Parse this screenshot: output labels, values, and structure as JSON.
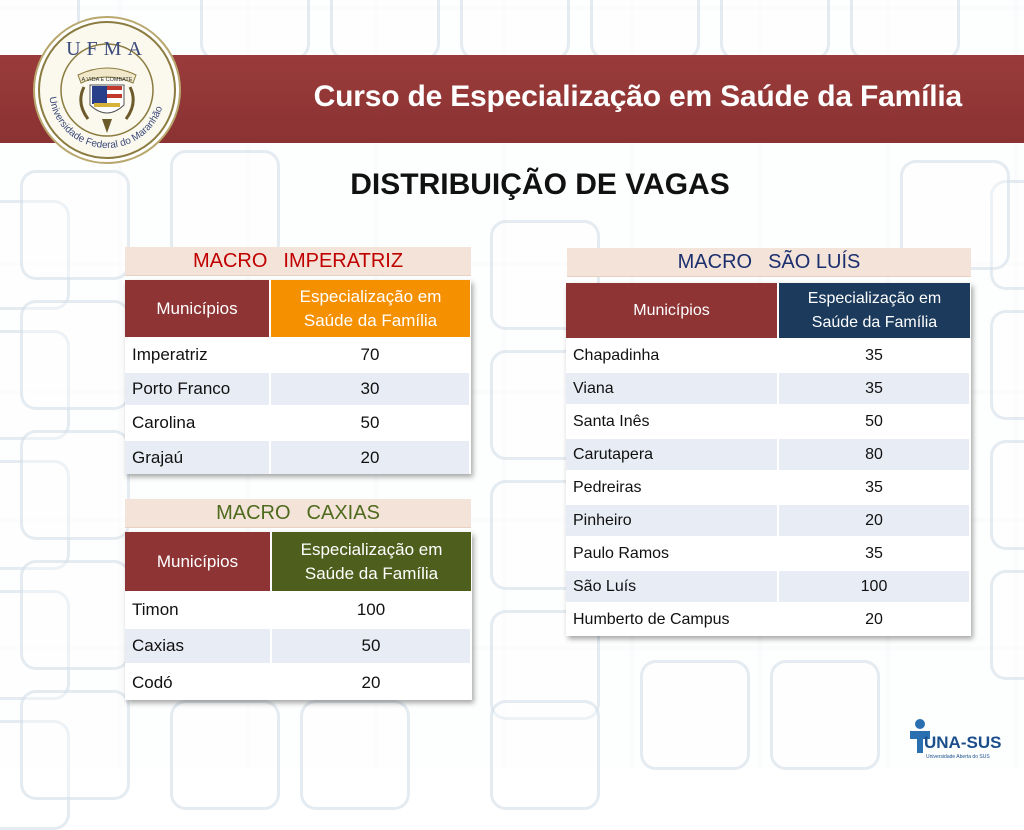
{
  "header": {
    "title": "Curso de Especialização em Saúde da Família",
    "logo_text": "UFMA",
    "logo_ring_text": "Universidade Federal do Maranhão",
    "logo_ribbon_text": "A VIDA E COMBATE"
  },
  "page_title": "DISTRIBUIÇÃO DE VAGAS",
  "colors": {
    "banner": "#8e3434",
    "header_municipios": "#8e3434",
    "imperatriz_accent": "#f59000",
    "caxias_accent": "#4e5e1c",
    "sao_luis_accent": "#1b3a5c",
    "imperatriz_label": "#c00000",
    "caxias_label": "#4e6a1c",
    "sao_luis_label": "#1b2f6e"
  },
  "tables": {
    "imperatriz": {
      "macro_word": "MACRO",
      "name": "IMPERATRIZ",
      "col1": "Municípios",
      "col2_line1": "Especialização em",
      "col2_line2": "Saúde da Família",
      "rows": [
        {
          "municipio": "Imperatriz",
          "vagas": "70"
        },
        {
          "municipio": "Porto Franco",
          "vagas": "30"
        },
        {
          "municipio": "Carolina",
          "vagas": "50"
        },
        {
          "municipio": "Grajaú",
          "vagas": "20"
        }
      ]
    },
    "caxias": {
      "macro_word": "MACRO",
      "name": "CAXIAS",
      "col1": "Municípios",
      "col2_line1": "Especialização em",
      "col2_line2": "Saúde da Família",
      "rows": [
        {
          "municipio": "Timon",
          "vagas": "100"
        },
        {
          "municipio": "Caxias",
          "vagas": "50"
        },
        {
          "municipio": "Codó",
          "vagas": "20"
        }
      ]
    },
    "sao_luis": {
      "macro_word": "MACRO",
      "name": "SÃO LUÍS",
      "col1": "Municípios",
      "col2_line1": "Especialização em",
      "col2_line2": "Saúde da Família",
      "rows": [
        {
          "municipio": "Chapadinha",
          "vagas": "35"
        },
        {
          "municipio": "Viana",
          "vagas": "35"
        },
        {
          "municipio": "Santa Inês",
          "vagas": "50"
        },
        {
          "municipio": "Carutapera",
          "vagas": "80"
        },
        {
          "municipio": "Pedreiras",
          "vagas": "35"
        },
        {
          "municipio": "Pinheiro",
          "vagas": "20"
        },
        {
          "municipio": "Paulo Ramos",
          "vagas": "35"
        },
        {
          "municipio": "São Luís",
          "vagas": "100"
        },
        {
          "municipio": "Humberto de Campus",
          "vagas": "20"
        }
      ]
    }
  },
  "footer": {
    "unasus_logo": "UNA-SUS",
    "unasus_sub": "Universidade Aberta do SUS"
  }
}
